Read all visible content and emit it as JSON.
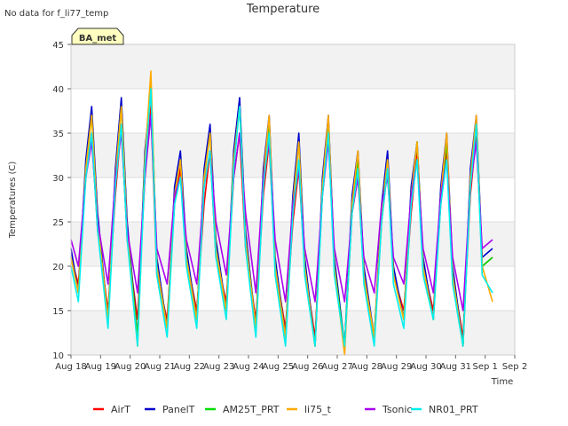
{
  "chart_data": {
    "type": "line",
    "title": "Temperature",
    "corner_note": "No data for f_li77_temp",
    "site_badge": "BA_met",
    "xlabel": "Time",
    "ylabel": "Temperatures (C)",
    "ylim": [
      10,
      45
    ],
    "yticks": [
      10,
      15,
      20,
      25,
      30,
      35,
      40,
      45
    ],
    "xlim": [
      0,
      15
    ],
    "xticks": [
      {
        "pos": 0,
        "label": "Aug 18"
      },
      {
        "pos": 1,
        "label": "Aug 19"
      },
      {
        "pos": 2,
        "label": "Aug 20"
      },
      {
        "pos": 3,
        "label": "Aug 21"
      },
      {
        "pos": 4,
        "label": "Aug 22"
      },
      {
        "pos": 5,
        "label": "Aug 23"
      },
      {
        "pos": 6,
        "label": "Aug 24"
      },
      {
        "pos": 7,
        "label": "Aug 25"
      },
      {
        "pos": 8,
        "label": "Aug 26"
      },
      {
        "pos": 9,
        "label": "Aug 27"
      },
      {
        "pos": 10,
        "label": "Aug 28"
      },
      {
        "pos": 11,
        "label": "Aug 29"
      },
      {
        "pos": 12,
        "label": "Aug 30"
      },
      {
        "pos": 13,
        "label": "Aug 31"
      },
      {
        "pos": 14,
        "label": "Sep 1"
      },
      {
        "pos": 15,
        "label": "Sep 2"
      }
    ],
    "grid": true,
    "legend_position": "bottom",
    "series": [
      {
        "name": "AirT",
        "color": "#ff0000",
        "x": [
          0.0,
          0.25,
          0.5,
          0.7,
          0.9,
          1.25,
          1.5,
          1.7,
          1.9,
          2.25,
          2.5,
          2.7,
          2.9,
          3.25,
          3.5,
          3.7,
          3.9,
          4.25,
          4.5,
          4.7,
          4.9,
          5.25,
          5.5,
          5.7,
          5.9,
          6.25,
          6.5,
          6.7,
          6.9,
          7.25,
          7.5,
          7.7,
          7.9,
          8.25,
          8.5,
          8.7,
          8.9,
          9.25,
          9.5,
          9.7,
          9.9,
          10.25,
          10.5,
          10.7,
          10.9,
          11.25,
          11.5,
          11.7,
          11.9,
          12.25,
          12.5,
          12.7,
          12.9,
          13.25,
          13.5,
          13.7,
          13.9,
          14.25
        ],
        "y": [
          21,
          18,
          30,
          35,
          24,
          15,
          28,
          36,
          23,
          14,
          30,
          38,
          19,
          14,
          27,
          31,
          21,
          15,
          27,
          33,
          21,
          16,
          30,
          35,
          22,
          14,
          28,
          34,
          20,
          13,
          25,
          31,
          20,
          12,
          28,
          35,
          20,
          11,
          26,
          30,
          19,
          12,
          25,
          31,
          19,
          15,
          26,
          33,
          20,
          15,
          27,
          33,
          19,
          12,
          28,
          35,
          20,
          21
        ]
      },
      {
        "name": "PanelT",
        "color": "#0000cc",
        "x": [
          0.0,
          0.25,
          0.5,
          0.7,
          0.9,
          1.25,
          1.5,
          1.7,
          1.9,
          2.25,
          2.5,
          2.7,
          2.9,
          3.25,
          3.5,
          3.7,
          3.9,
          4.25,
          4.5,
          4.7,
          4.9,
          5.25,
          5.5,
          5.7,
          5.9,
          6.25,
          6.5,
          6.7,
          6.9,
          7.25,
          7.5,
          7.7,
          7.9,
          8.25,
          8.5,
          8.7,
          8.9,
          9.25,
          9.5,
          9.7,
          9.9,
          10.25,
          10.5,
          10.7,
          10.9,
          11.25,
          11.5,
          11.7,
          11.9,
          12.25,
          12.5,
          12.7,
          12.9,
          13.25,
          13.5,
          13.7,
          13.9,
          14.25
        ],
        "y": [
          22,
          17,
          32,
          38,
          26,
          14,
          31,
          39,
          25,
          12,
          33,
          40,
          21,
          13,
          29,
          33,
          22,
          14,
          31,
          36,
          23,
          15,
          33,
          39,
          24,
          13,
          31,
          37,
          21,
          12,
          28,
          35,
          21,
          11,
          30,
          37,
          21,
          11,
          28,
          33,
          20,
          12,
          27,
          33,
          20,
          14,
          29,
          34,
          21,
          14,
          29,
          35,
          20,
          11,
          31,
          37,
          21,
          22
        ]
      },
      {
        "name": "AM25T_PRT",
        "color": "#00dd00",
        "x": [
          0.0,
          0.25,
          0.5,
          0.7,
          0.9,
          1.25,
          1.5,
          1.7,
          1.9,
          2.25,
          2.5,
          2.7,
          2.9,
          3.25,
          3.5,
          3.7,
          3.9,
          4.25,
          4.5,
          4.7,
          4.9,
          5.25,
          5.5,
          5.7,
          5.9,
          6.25,
          6.5,
          6.7,
          6.9,
          7.25,
          7.5,
          7.7,
          7.9,
          8.25,
          8.5,
          8.7,
          8.9,
          9.25,
          9.5,
          9.7,
          9.9,
          10.25,
          10.5,
          10.7,
          10.9,
          11.25,
          11.5,
          11.7,
          11.9,
          12.25,
          12.5,
          12.7,
          12.9,
          13.25,
          13.5,
          13.7,
          13.9,
          14.25
        ],
        "y": [
          21,
          17,
          31,
          37,
          25,
          14,
          30,
          38,
          24,
          12,
          32,
          41,
          20,
          13,
          28,
          32,
          21,
          14,
          30,
          35,
          22,
          15,
          32,
          38,
          23,
          13,
          30,
          36,
          20,
          12,
          27,
          34,
          20,
          11,
          29,
          36,
          20,
          11,
          27,
          32,
          19,
          12,
          26,
          32,
          19,
          14,
          28,
          34,
          20,
          14,
          28,
          34,
          19,
          11,
          30,
          36,
          20,
          21
        ]
      },
      {
        "name": "li75_t",
        "color": "#ffaa00",
        "x": [
          0.0,
          0.25,
          0.5,
          0.7,
          0.9,
          1.25,
          1.5,
          1.7,
          1.9,
          2.25,
          2.5,
          2.7,
          2.9,
          3.25,
          3.5,
          3.7,
          3.9,
          4.25,
          4.5,
          4.7,
          4.9,
          5.25,
          5.5,
          5.7,
          5.9,
          6.25,
          6.5,
          6.7,
          6.9,
          7.25,
          7.5,
          7.7,
          7.9,
          8.25,
          8.5,
          8.7,
          8.9,
          9.25,
          9.5,
          9.7,
          9.9,
          10.25,
          10.5,
          10.7,
          10.9,
          11.25,
          11.5,
          11.7,
          11.9,
          12.25,
          12.5,
          12.7,
          12.9,
          13.25,
          13.5,
          13.7,
          13.9,
          14.25
        ],
        "y": [
          21,
          17,
          31,
          37,
          25,
          14,
          30,
          38,
          24,
          11,
          32,
          42,
          20,
          13,
          28,
          32,
          21,
          14,
          30,
          35,
          22,
          15,
          32,
          38,
          23,
          13,
          30,
          37,
          20,
          12,
          27,
          34,
          20,
          11,
          29,
          37,
          20,
          10,
          27,
          33,
          19,
          12,
          26,
          32,
          19,
          14,
          28,
          34,
          20,
          14,
          28,
          35,
          19,
          11,
          30,
          37,
          20,
          16
        ]
      },
      {
        "name": "Tsonic",
        "color": "#aa00ee",
        "x": [
          0.0,
          0.25,
          0.5,
          0.7,
          0.9,
          1.25,
          1.5,
          1.7,
          1.9,
          2.25,
          2.5,
          2.7,
          2.9,
          3.25,
          3.5,
          3.7,
          3.9,
          4.25,
          4.5,
          4.7,
          4.9,
          5.25,
          5.5,
          5.7,
          5.9,
          6.25,
          6.5,
          6.7,
          6.9,
          7.25,
          7.5,
          7.7,
          7.9,
          8.25,
          8.5,
          8.7,
          8.9,
          9.25,
          9.5,
          9.7,
          9.9,
          10.25,
          10.5,
          10.7,
          10.9,
          11.25,
          11.5,
          11.7,
          11.9,
          12.25,
          12.5,
          12.7,
          12.9,
          13.25,
          13.5,
          13.7,
          13.9,
          14.25
        ],
        "y": [
          23,
          20,
          30,
          34,
          25,
          18,
          30,
          35,
          24,
          17,
          30,
          37,
          22,
          18,
          28,
          30,
          23,
          18,
          29,
          33,
          25,
          19,
          30,
          35,
          26,
          17,
          30,
          34,
          23,
          16,
          27,
          31,
          22,
          16,
          28,
          34,
          22,
          16,
          26,
          30,
          21,
          17,
          27,
          30,
          21,
          18,
          28,
          32,
          22,
          17,
          28,
          32,
          21,
          15,
          29,
          34,
          22,
          23
        ]
      },
      {
        "name": "NR01_PRT",
        "color": "#00eeee",
        "x": [
          0.0,
          0.25,
          0.5,
          0.7,
          0.9,
          1.25,
          1.5,
          1.7,
          1.9,
          2.25,
          2.5,
          2.7,
          2.9,
          3.25,
          3.5,
          3.7,
          3.9,
          4.25,
          4.5,
          4.7,
          4.9,
          5.25,
          5.5,
          5.7,
          5.9,
          6.25,
          6.5,
          6.7,
          6.9,
          7.25,
          7.5,
          7.7,
          7.9,
          8.25,
          8.5,
          8.7,
          8.9,
          9.25,
          9.5,
          9.7,
          9.9,
          10.25,
          10.5,
          10.7,
          10.9,
          11.25,
          11.5,
          11.7,
          11.9,
          12.25,
          12.5,
          12.7,
          12.9,
          13.25,
          13.5,
          13.7,
          13.9,
          14.25
        ],
        "y": [
          20,
          16,
          30,
          35,
          24,
          13,
          29,
          36,
          23,
          11,
          31,
          40,
          19,
          12,
          27,
          30,
          20,
          13,
          29,
          33,
          21,
          14,
          31,
          38,
          22,
          12,
          29,
          35,
          19,
          11,
          26,
          32,
          19,
          11,
          28,
          35,
          19,
          11,
          26,
          31,
          18,
          11,
          25,
          31,
          18,
          13,
          27,
          32,
          19,
          14,
          27,
          32,
          18,
          11,
          29,
          36,
          19,
          17
        ]
      }
    ]
  }
}
